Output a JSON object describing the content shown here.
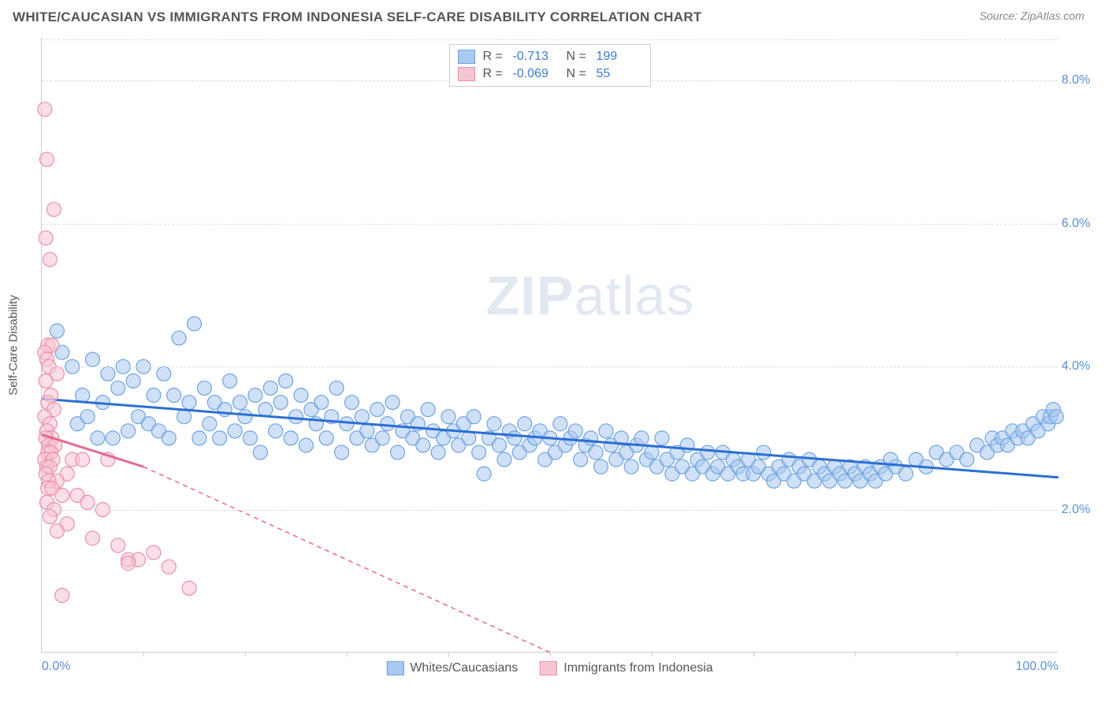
{
  "header": {
    "title": "WHITE/CAUCASIAN VS IMMIGRANTS FROM INDONESIA SELF-CARE DISABILITY CORRELATION CHART",
    "source": "Source: ZipAtlas.com"
  },
  "chart": {
    "type": "scatter",
    "ylabel": "Self-Care Disability",
    "background_color": "#ffffff",
    "grid_color": "#dddddd",
    "axis_color": "#cccccc",
    "xlim": [
      0,
      100
    ],
    "ylim": [
      0,
      8.6
    ],
    "yticks": [
      2.0,
      4.0,
      6.0,
      8.0
    ],
    "ytick_labels": [
      "2.0%",
      "4.0%",
      "6.0%",
      "8.0%"
    ],
    "xtick_labels": {
      "0": "0.0%",
      "100": "100.0%"
    },
    "xtick_minors": [
      10,
      20,
      30,
      40,
      50,
      60,
      70,
      80,
      90
    ],
    "title_fontsize": 17,
    "label_fontsize": 15,
    "tick_fontsize": 16,
    "tick_color": "#5b8fd6",
    "marker_radius": 9,
    "marker_opacity": 0.55,
    "line_width": 3,
    "series": [
      {
        "name": "Whites/Caucasians",
        "color_fill": "#a9c9f0",
        "color_stroke": "#6fa3e0",
        "line_color": "#2b6fd4",
        "R": "-0.713",
        "N": "199",
        "trendline": {
          "x1": 0,
          "y1": 3.55,
          "x2": 100,
          "y2": 2.45,
          "dash": "none"
        },
        "points": [
          [
            1.5,
            4.5
          ],
          [
            2,
            4.2
          ],
          [
            3,
            4.0
          ],
          [
            3.5,
            3.2
          ],
          [
            4,
            3.6
          ],
          [
            4.5,
            3.3
          ],
          [
            5,
            4.1
          ],
          [
            5.5,
            3.0
          ],
          [
            6,
            3.5
          ],
          [
            6.5,
            3.9
          ],
          [
            7,
            3.0
          ],
          [
            7.5,
            3.7
          ],
          [
            8,
            4.0
          ],
          [
            8.5,
            3.1
          ],
          [
            9,
            3.8
          ],
          [
            9.5,
            3.3
          ],
          [
            10,
            4.0
          ],
          [
            10.5,
            3.2
          ],
          [
            11,
            3.6
          ],
          [
            11.5,
            3.1
          ],
          [
            12,
            3.9
          ],
          [
            12.5,
            3.0
          ],
          [
            13,
            3.6
          ],
          [
            13.5,
            4.4
          ],
          [
            14,
            3.3
          ],
          [
            14.5,
            3.5
          ],
          [
            15,
            4.6
          ],
          [
            15.5,
            3.0
          ],
          [
            16,
            3.7
          ],
          [
            16.5,
            3.2
          ],
          [
            17,
            3.5
          ],
          [
            17.5,
            3.0
          ],
          [
            18,
            3.4
          ],
          [
            18.5,
            3.8
          ],
          [
            19,
            3.1
          ],
          [
            19.5,
            3.5
          ],
          [
            20,
            3.3
          ],
          [
            20.5,
            3.0
          ],
          [
            21,
            3.6
          ],
          [
            21.5,
            2.8
          ],
          [
            22,
            3.4
          ],
          [
            22.5,
            3.7
          ],
          [
            23,
            3.1
          ],
          [
            23.5,
            3.5
          ],
          [
            24,
            3.8
          ],
          [
            24.5,
            3.0
          ],
          [
            25,
            3.3
          ],
          [
            25.5,
            3.6
          ],
          [
            26,
            2.9
          ],
          [
            26.5,
            3.4
          ],
          [
            27,
            3.2
          ],
          [
            27.5,
            3.5
          ],
          [
            28,
            3.0
          ],
          [
            28.5,
            3.3
          ],
          [
            29,
            3.7
          ],
          [
            29.5,
            2.8
          ],
          [
            30,
            3.2
          ],
          [
            30.5,
            3.5
          ],
          [
            31,
            3.0
          ],
          [
            31.5,
            3.3
          ],
          [
            32,
            3.1
          ],
          [
            32.5,
            2.9
          ],
          [
            33,
            3.4
          ],
          [
            33.5,
            3.0
          ],
          [
            34,
            3.2
          ],
          [
            34.5,
            3.5
          ],
          [
            35,
            2.8
          ],
          [
            35.5,
            3.1
          ],
          [
            36,
            3.3
          ],
          [
            36.5,
            3.0
          ],
          [
            37,
            3.2
          ],
          [
            37.5,
            2.9
          ],
          [
            38,
            3.4
          ],
          [
            38.5,
            3.1
          ],
          [
            39,
            2.8
          ],
          [
            39.5,
            3.0
          ],
          [
            40,
            3.3
          ],
          [
            40.5,
            3.1
          ],
          [
            41,
            2.9
          ],
          [
            41.5,
            3.2
          ],
          [
            42,
            3.0
          ],
          [
            42.5,
            3.3
          ],
          [
            43,
            2.8
          ],
          [
            43.5,
            2.5
          ],
          [
            44,
            3.0
          ],
          [
            44.5,
            3.2
          ],
          [
            45,
            2.9
          ],
          [
            45.5,
            2.7
          ],
          [
            46,
            3.1
          ],
          [
            46.5,
            3.0
          ],
          [
            47,
            2.8
          ],
          [
            47.5,
            3.2
          ],
          [
            48,
            2.9
          ],
          [
            48.5,
            3.0
          ],
          [
            49,
            3.1
          ],
          [
            49.5,
            2.7
          ],
          [
            50,
            3.0
          ],
          [
            50.5,
            2.8
          ],
          [
            51,
            3.2
          ],
          [
            51.5,
            2.9
          ],
          [
            52,
            3.0
          ],
          [
            52.5,
            3.1
          ],
          [
            53,
            2.7
          ],
          [
            53.5,
            2.9
          ],
          [
            54,
            3.0
          ],
          [
            54.5,
            2.8
          ],
          [
            55,
            2.6
          ],
          [
            55.5,
            3.1
          ],
          [
            56,
            2.9
          ],
          [
            56.5,
            2.7
          ],
          [
            57,
            3.0
          ],
          [
            57.5,
            2.8
          ],
          [
            58,
            2.6
          ],
          [
            58.5,
            2.9
          ],
          [
            59,
            3.0
          ],
          [
            59.5,
            2.7
          ],
          [
            60,
            2.8
          ],
          [
            60.5,
            2.6
          ],
          [
            61,
            3.0
          ],
          [
            61.5,
            2.7
          ],
          [
            62,
            2.5
          ],
          [
            62.5,
            2.8
          ],
          [
            63,
            2.6
          ],
          [
            63.5,
            2.9
          ],
          [
            64,
            2.5
          ],
          [
            64.5,
            2.7
          ],
          [
            65,
            2.6
          ],
          [
            65.5,
            2.8
          ],
          [
            66,
            2.5
          ],
          [
            66.5,
            2.6
          ],
          [
            67,
            2.8
          ],
          [
            67.5,
            2.5
          ],
          [
            68,
            2.7
          ],
          [
            68.5,
            2.6
          ],
          [
            69,
            2.5
          ],
          [
            69.5,
            2.7
          ],
          [
            70,
            2.5
          ],
          [
            70.5,
            2.6
          ],
          [
            71,
            2.8
          ],
          [
            71.5,
            2.5
          ],
          [
            72,
            2.4
          ],
          [
            72.5,
            2.6
          ],
          [
            73,
            2.5
          ],
          [
            73.5,
            2.7
          ],
          [
            74,
            2.4
          ],
          [
            74.5,
            2.6
          ],
          [
            75,
            2.5
          ],
          [
            75.5,
            2.7
          ],
          [
            76,
            2.4
          ],
          [
            76.5,
            2.6
          ],
          [
            77,
            2.5
          ],
          [
            77.5,
            2.4
          ],
          [
            78,
            2.6
          ],
          [
            78.5,
            2.5
          ],
          [
            79,
            2.4
          ],
          [
            79.5,
            2.6
          ],
          [
            80,
            2.5
          ],
          [
            80.5,
            2.4
          ],
          [
            81,
            2.6
          ],
          [
            81.5,
            2.5
          ],
          [
            82,
            2.4
          ],
          [
            82.5,
            2.6
          ],
          [
            83,
            2.5
          ],
          [
            83.5,
            2.7
          ],
          [
            84,
            2.6
          ],
          [
            85,
            2.5
          ],
          [
            86,
            2.7
          ],
          [
            87,
            2.6
          ],
          [
            88,
            2.8
          ],
          [
            89,
            2.7
          ],
          [
            90,
            2.8
          ],
          [
            91,
            2.7
          ],
          [
            92,
            2.9
          ],
          [
            93,
            2.8
          ],
          [
            93.5,
            3.0
          ],
          [
            94,
            2.9
          ],
          [
            94.5,
            3.0
          ],
          [
            95,
            2.9
          ],
          [
            95.5,
            3.1
          ],
          [
            96,
            3.0
          ],
          [
            96.5,
            3.1
          ],
          [
            97,
            3.0
          ],
          [
            97.5,
            3.2
          ],
          [
            98,
            3.1
          ],
          [
            98.5,
            3.3
          ],
          [
            99,
            3.2
          ],
          [
            99.2,
            3.3
          ],
          [
            99.5,
            3.4
          ],
          [
            99.8,
            3.3
          ]
        ]
      },
      {
        "name": "Immigrants from Indonesia",
        "color_fill": "#f7c5d1",
        "color_stroke": "#e98fa9",
        "line_color": "#e46a8c",
        "R": "-0.069",
        "N": "55",
        "trendline": {
          "x1": 0,
          "y1": 3.05,
          "x2": 10,
          "y2": 2.6,
          "dash": "none"
        },
        "trendline_ext": {
          "x1": 10,
          "y1": 2.6,
          "x2": 50,
          "y2": 0.0,
          "dash": "6,5"
        },
        "points": [
          [
            0.3,
            7.6
          ],
          [
            0.5,
            6.9
          ],
          [
            1.2,
            6.2
          ],
          [
            0.4,
            5.8
          ],
          [
            0.8,
            5.5
          ],
          [
            0.6,
            4.3
          ],
          [
            1.0,
            4.3
          ],
          [
            0.3,
            4.2
          ],
          [
            0.5,
            4.1
          ],
          [
            0.7,
            4.0
          ],
          [
            1.5,
            3.9
          ],
          [
            0.4,
            3.8
          ],
          [
            0.9,
            3.6
          ],
          [
            0.6,
            3.5
          ],
          [
            1.2,
            3.4
          ],
          [
            0.3,
            3.3
          ],
          [
            0.8,
            3.2
          ],
          [
            0.5,
            3.1
          ],
          [
            1.0,
            3.0
          ],
          [
            0.4,
            3.0
          ],
          [
            0.7,
            2.9
          ],
          [
            1.3,
            2.9
          ],
          [
            0.6,
            2.8
          ],
          [
            0.9,
            2.8
          ],
          [
            0.3,
            2.7
          ],
          [
            1.1,
            2.7
          ],
          [
            0.5,
            2.6
          ],
          [
            0.8,
            2.6
          ],
          [
            3.0,
            2.7
          ],
          [
            4.0,
            2.7
          ],
          [
            6.5,
            2.7
          ],
          [
            2.5,
            2.5
          ],
          [
            0.4,
            2.5
          ],
          [
            1.5,
            2.4
          ],
          [
            0.7,
            2.4
          ],
          [
            0.6,
            2.3
          ],
          [
            1.0,
            2.3
          ],
          [
            2.0,
            2.2
          ],
          [
            3.5,
            2.2
          ],
          [
            0.5,
            2.1
          ],
          [
            4.5,
            2.1
          ],
          [
            1.2,
            2.0
          ],
          [
            6.0,
            2.0
          ],
          [
            0.8,
            1.9
          ],
          [
            2.5,
            1.8
          ],
          [
            1.5,
            1.7
          ],
          [
            5.0,
            1.6
          ],
          [
            7.5,
            1.5
          ],
          [
            11.0,
            1.4
          ],
          [
            8.5,
            1.3
          ],
          [
            9.5,
            1.3
          ],
          [
            8.5,
            1.25
          ],
          [
            12.5,
            1.2
          ],
          [
            2.0,
            0.8
          ],
          [
            14.5,
            0.9
          ]
        ]
      }
    ],
    "legend_bottom": [
      {
        "label": "Whites/Caucasians",
        "fill": "#a9c9f0",
        "stroke": "#6fa3e0"
      },
      {
        "label": "Immigrants from Indonesia",
        "fill": "#f7c5d1",
        "stroke": "#e98fa9"
      }
    ],
    "watermark": {
      "prefix": "ZIP",
      "suffix": "atlas"
    }
  }
}
